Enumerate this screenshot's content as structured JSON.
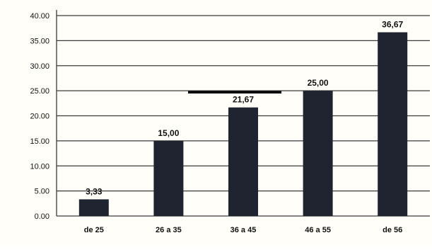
{
  "chart_data": {
    "type": "bar",
    "title": "",
    "xlabel": "",
    "ylabel": "",
    "categories": [
      "de 25",
      "26 a 35",
      "36 a 45",
      "46 a 55",
      "de 56"
    ],
    "values": [
      3.33,
      15.0,
      21.67,
      25.0,
      36.67
    ],
    "data_labels": [
      "3,33",
      "15,00",
      "21,67",
      "25,00",
      "36,67"
    ],
    "y_ticks": [
      0,
      5,
      10,
      15,
      20,
      25,
      30,
      35,
      40
    ],
    "y_tick_labels": [
      "0.00",
      "5.00",
      "10.00",
      "15.00",
      "20.00",
      "25.00",
      "30.00",
      "35.00",
      "40.00"
    ],
    "ylim": [
      0,
      40
    ],
    "grid": true,
    "legend": "none",
    "colors": {
      "bar": "#1f2430",
      "grid": "#3b3b3b",
      "text": "#111111",
      "background": "#fffef9",
      "annotation_line": "#000000"
    },
    "annotation_line": {
      "from_y": 24.7
    }
  }
}
